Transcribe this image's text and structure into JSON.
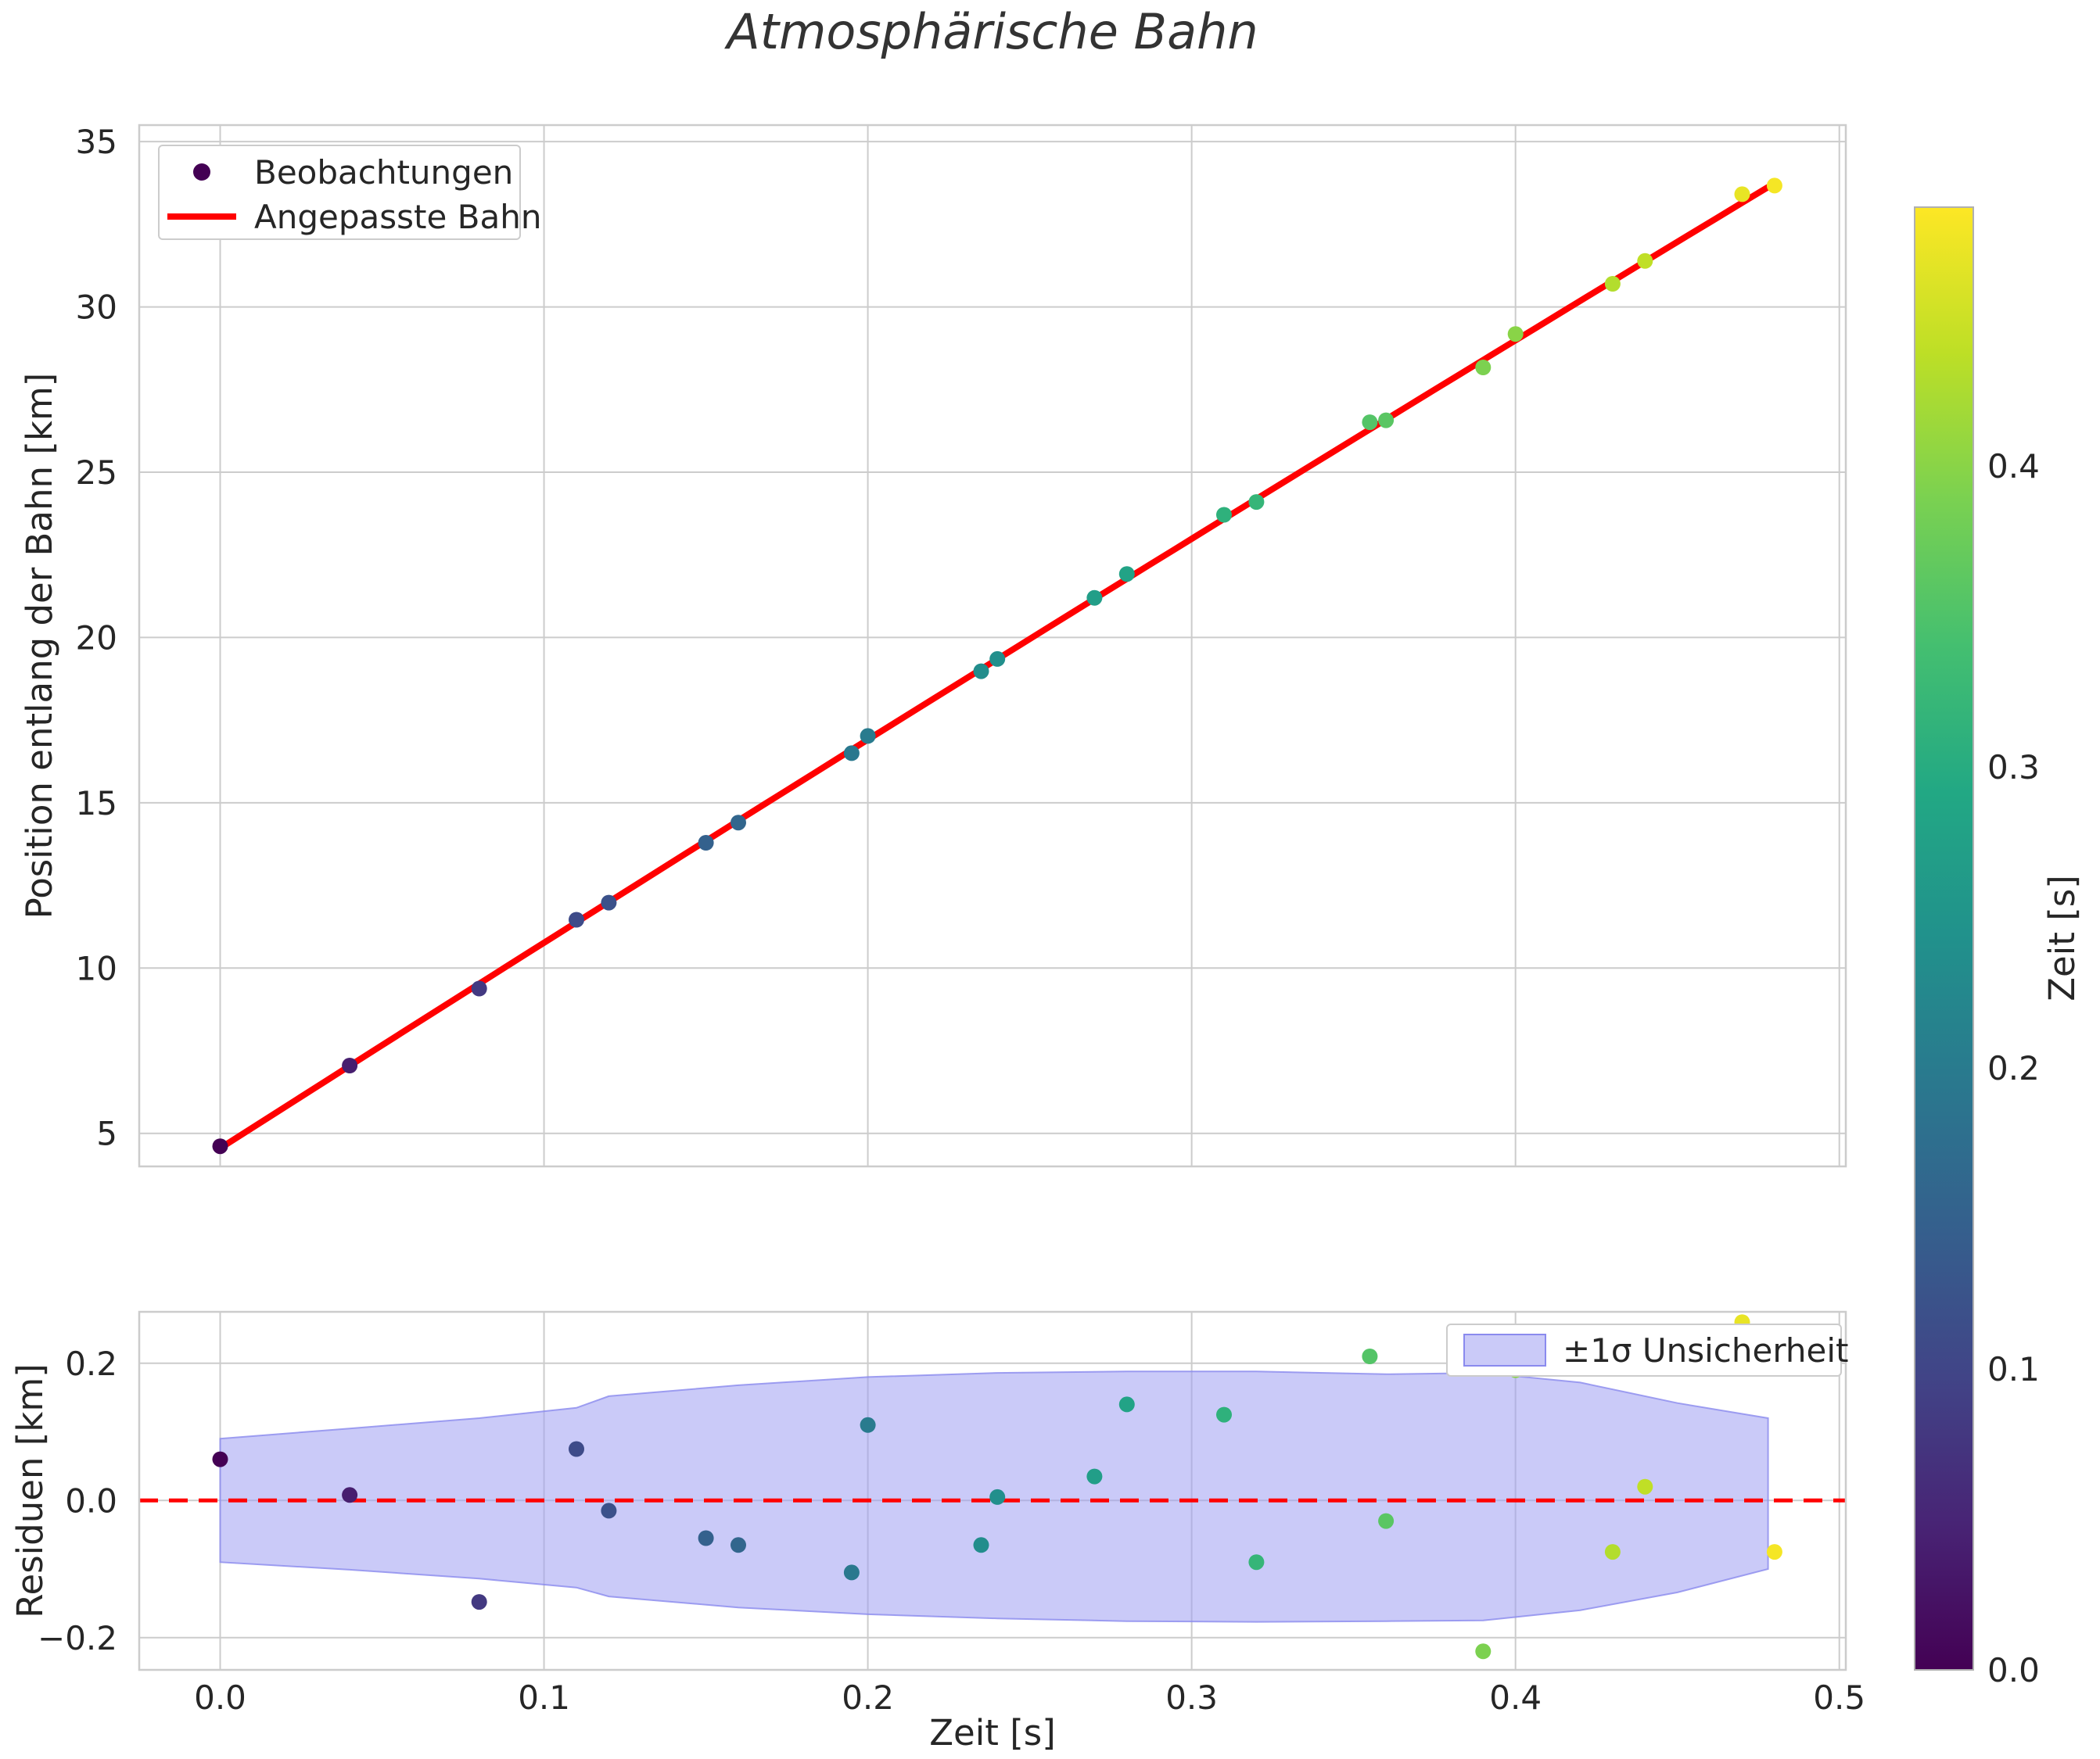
{
  "figure": {
    "title": "Atmosphärische Bahn",
    "colors": {
      "fit_line": "#ff0000",
      "zero_line": "#ff0000",
      "band_fill": "#9f9ff2",
      "band_edge": "#8a8aee",
      "text": "#262626",
      "title_text": "#333333",
      "grid": "#cccccc",
      "spine": "#cccccc",
      "legend_dot": "#440154"
    },
    "colormap": {
      "name": "viridis",
      "stops": [
        {
          "p": 0.0,
          "c": "#440154"
        },
        {
          "p": 0.1,
          "c": "#482475"
        },
        {
          "p": 0.2,
          "c": "#414487"
        },
        {
          "p": 0.3,
          "c": "#355f8d"
        },
        {
          "p": 0.4,
          "c": "#2a788e"
        },
        {
          "p": 0.5,
          "c": "#21918c"
        },
        {
          "p": 0.6,
          "c": "#22a884"
        },
        {
          "p": 0.7,
          "c": "#44bf70"
        },
        {
          "p": 0.8,
          "c": "#7ad151"
        },
        {
          "p": 0.9,
          "c": "#bddf26"
        },
        {
          "p": 1.0,
          "c": "#fde725"
        }
      ]
    },
    "colorbar": {
      "label": "Zeit [s]",
      "vmin": 0.0,
      "vmax": 0.486,
      "ticks": [
        0.0,
        0.1,
        0.2,
        0.3,
        0.4
      ],
      "tick_labels": [
        "0.0",
        "0.1",
        "0.2",
        "0.3",
        "0.4"
      ]
    }
  },
  "chart_data": [
    {
      "type": "scatter",
      "name": "position-vs-time",
      "title": "Atmosphärische Bahn",
      "xlabel": "",
      "ylabel": "Position entlang der Bahn [km]",
      "xlim": [
        -0.025,
        0.502
      ],
      "ylim": [
        4.0,
        35.5
      ],
      "grid": true,
      "xtick_vals": [
        0.0,
        0.1,
        0.2,
        0.3,
        0.4,
        0.5
      ],
      "ytick_vals": [
        5,
        10,
        15,
        20,
        25,
        30,
        35
      ],
      "ytick_labels": [
        "5",
        "10",
        "15",
        "20",
        "25",
        "30",
        "35"
      ],
      "legend": {
        "position": "upper-left",
        "entries": [
          {
            "label": "Beobachtungen",
            "marker": "dot"
          },
          {
            "label": "Angepasste Bahn",
            "marker": "line"
          }
        ]
      },
      "series": [
        {
          "name": "Beobachtungen",
          "type": "scatter",
          "color_by": "time",
          "x": [
            0.0,
            0.04,
            0.08,
            0.11,
            0.12,
            0.15,
            0.16,
            0.195,
            0.2,
            0.235,
            0.24,
            0.27,
            0.28,
            0.31,
            0.32,
            0.355,
            0.36,
            0.39,
            0.4,
            0.43,
            0.44,
            0.47,
            0.48
          ],
          "y": [
            4.61,
            7.05,
            9.38,
            11.46,
            11.98,
            13.79,
            14.4,
            16.5,
            17.02,
            18.98,
            19.35,
            21.2,
            21.92,
            23.71,
            24.1,
            26.51,
            26.57,
            28.17,
            29.18,
            30.7,
            31.39,
            33.41,
            33.67
          ]
        },
        {
          "name": "Angepasste Bahn",
          "type": "line",
          "color": "#ff0000",
          "fit": {
            "model": "s(t) = s0 + v*t + a*t^2",
            "s0": 4.55,
            "v": 62.5,
            "a": -3.5,
            "t_range": [
              0.0,
              0.478
            ]
          }
        }
      ]
    },
    {
      "type": "scatter",
      "name": "residuals",
      "xlabel": "Zeit [s]",
      "ylabel": "Residuen [km]",
      "xlim": [
        -0.025,
        0.502
      ],
      "ylim": [
        -0.247,
        0.275
      ],
      "grid": true,
      "xtick_vals": [
        0.0,
        0.1,
        0.2,
        0.3,
        0.4,
        0.5
      ],
      "xtick_labels": [
        "0.0",
        "0.1",
        "0.2",
        "0.3",
        "0.4",
        "0.5"
      ],
      "ytick_vals": [
        -0.2,
        0.0,
        0.2
      ],
      "ytick_labels": [
        "−0.2",
        "0.0",
        "0.2"
      ],
      "zero_line": 0.0,
      "legend": {
        "position": "upper-right",
        "entries": [
          {
            "label": "±1σ Unsicherheit",
            "marker": "patch"
          }
        ]
      },
      "series": [
        {
          "name": "Residuen",
          "type": "scatter",
          "color_by": "time",
          "x": [
            0.0,
            0.04,
            0.08,
            0.11,
            0.12,
            0.15,
            0.16,
            0.195,
            0.2,
            0.235,
            0.24,
            0.27,
            0.28,
            0.31,
            0.32,
            0.355,
            0.36,
            0.39,
            0.4,
            0.43,
            0.44,
            0.47,
            0.48
          ],
          "y": [
            0.06,
            0.008,
            -0.148,
            0.075,
            -0.015,
            -0.055,
            -0.065,
            -0.105,
            0.11,
            -0.065,
            0.005,
            0.035,
            0.14,
            0.125,
            -0.09,
            0.21,
            -0.03,
            -0.22,
            0.19,
            -0.075,
            0.02,
            0.26,
            -0.075
          ]
        }
      ],
      "band": {
        "name": "±1σ Unsicherheit",
        "x": [
          0.0,
          0.04,
          0.08,
          0.11,
          0.12,
          0.16,
          0.2,
          0.24,
          0.28,
          0.32,
          0.36,
          0.39,
          0.42,
          0.45,
          0.478
        ],
        "upper": [
          0.09,
          0.105,
          0.12,
          0.135,
          0.152,
          0.168,
          0.18,
          0.186,
          0.188,
          0.188,
          0.184,
          0.186,
          0.172,
          0.142,
          0.12
        ],
        "lower": [
          -0.09,
          -0.101,
          -0.114,
          -0.127,
          -0.14,
          -0.156,
          -0.166,
          -0.172,
          -0.176,
          -0.177,
          -0.176,
          -0.175,
          -0.16,
          -0.134,
          -0.1
        ]
      }
    }
  ]
}
